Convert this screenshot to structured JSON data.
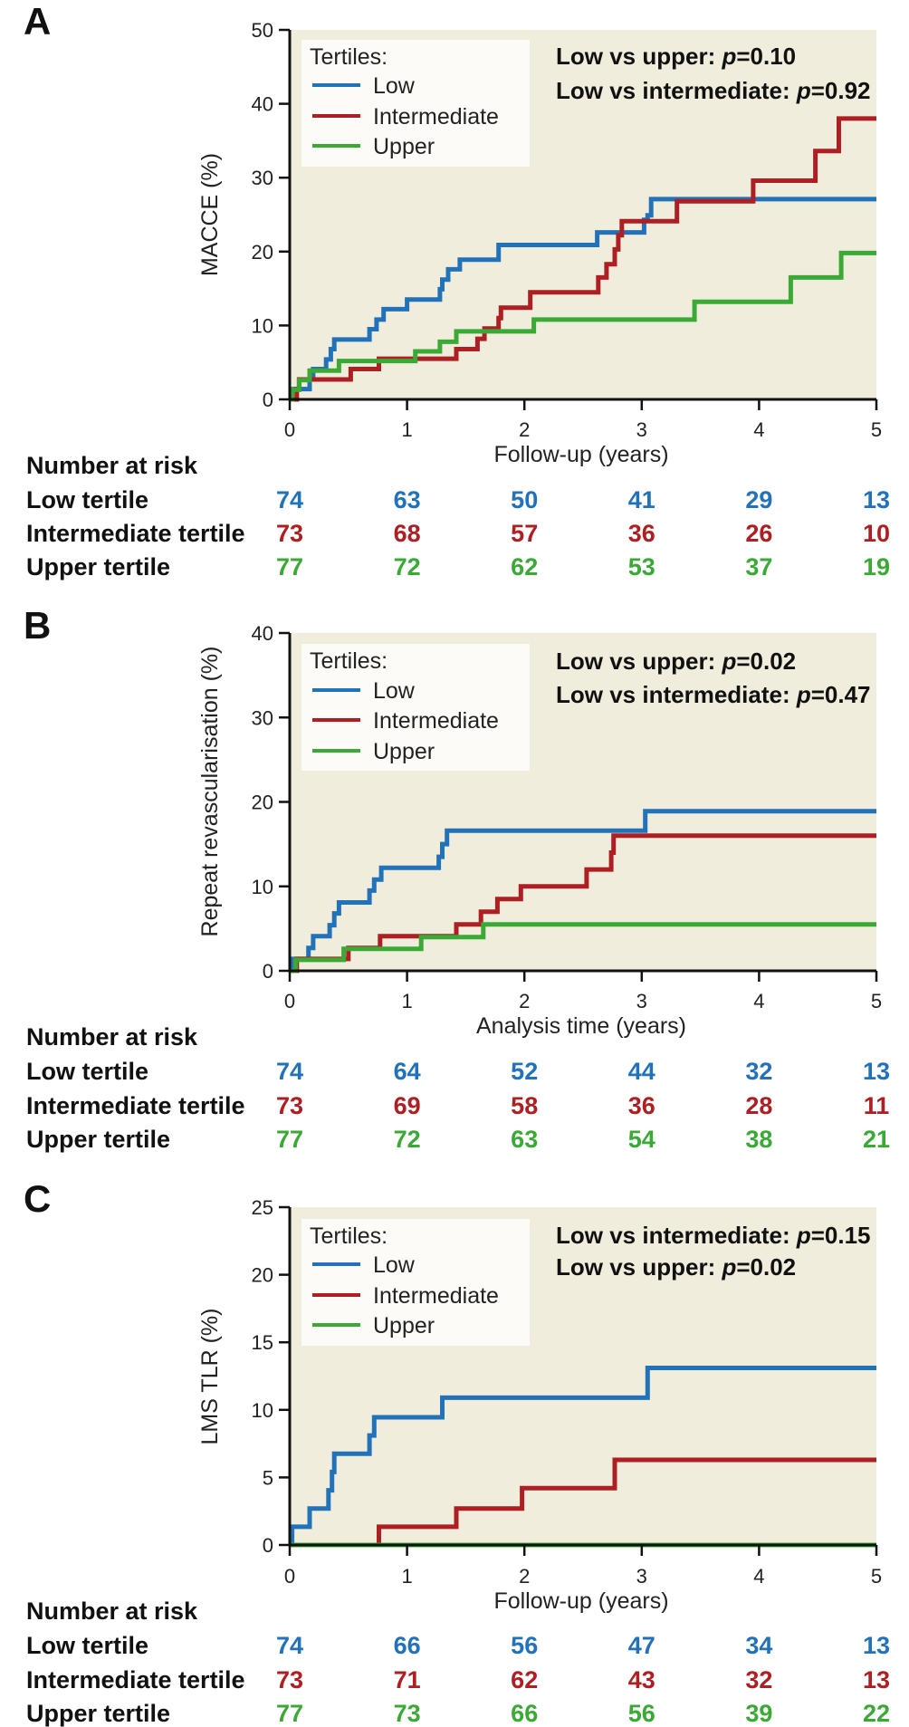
{
  "colors": {
    "low": "#2272b9",
    "intermediate": "#ad1f23",
    "upper": "#3aa935",
    "plot_background": "#f1eddc",
    "legend_background": "#fcfbf7"
  },
  "chart_data": [
    {
      "type": "line",
      "subtype": "kaplan-meier-step",
      "panel_label": "A",
      "title": "",
      "ylabel": "MACCE (%)",
      "xlabel": "Follow-up (years)",
      "xlim": [
        0,
        5
      ],
      "ylim": [
        0,
        50
      ],
      "x_ticks": [
        "0",
        "1",
        "2",
        "3",
        "4",
        "5"
      ],
      "y_ticks": [
        "0",
        "10",
        "20",
        "30",
        "40",
        "50"
      ],
      "x_tick_values": [
        0,
        1,
        2,
        3,
        4,
        5
      ],
      "y_tick_values": [
        0,
        10,
        20,
        30,
        40,
        50
      ],
      "grid": false,
      "legend": {
        "title": "Tertiles:",
        "placement": "top-left",
        "entries": [
          {
            "label": "Low",
            "key": "low"
          },
          {
            "label": "Intermediate",
            "key": "intermediate"
          },
          {
            "label": "Upper",
            "key": "upper"
          }
        ]
      },
      "annotations": [
        {
          "prefix": "Low vs upper: ",
          "p_symbol": "p",
          "suffix": "=0.10"
        },
        {
          "prefix": "Low vs intermediate: ",
          "p_symbol": "p",
          "suffix": "=0.92"
        }
      ],
      "series": [
        {
          "name": "Low",
          "key": "low",
          "points": [
            [
              0,
              0
            ],
            [
              0.02,
              1.4
            ],
            [
              0.17,
              2.7
            ],
            [
              0.2,
              4.1
            ],
            [
              0.31,
              5.4
            ],
            [
              0.35,
              6.8
            ],
            [
              0.38,
              8.1
            ],
            [
              0.68,
              9.5
            ],
            [
              0.74,
              10.8
            ],
            [
              0.8,
              12.2
            ],
            [
              1.0,
              13.5
            ],
            [
              1.28,
              14.9
            ],
            [
              1.3,
              16.2
            ],
            [
              1.35,
              17.6
            ],
            [
              1.45,
              18.9
            ],
            [
              1.78,
              20.9
            ],
            [
              2.62,
              22.6
            ],
            [
              3.02,
              24.3
            ],
            [
              3.05,
              24.9
            ],
            [
              3.08,
              27.1
            ],
            [
              5,
              27.1
            ]
          ]
        },
        {
          "name": "Intermediate",
          "key": "intermediate",
          "points": [
            [
              0,
              0
            ],
            [
              0.06,
              1.4
            ],
            [
              0.08,
              2.7
            ],
            [
              0.52,
              4.1
            ],
            [
              0.76,
              5.5
            ],
            [
              1.42,
              6.8
            ],
            [
              1.6,
              8.2
            ],
            [
              1.66,
              9.6
            ],
            [
              1.78,
              11.0
            ],
            [
              1.8,
              12.4
            ],
            [
              2.05,
              14.5
            ],
            [
              2.63,
              16.5
            ],
            [
              2.7,
              18.3
            ],
            [
              2.77,
              20.3
            ],
            [
              2.8,
              22.2
            ],
            [
              2.83,
              24.1
            ],
            [
              3.3,
              26.8
            ],
            [
              3.95,
              29.6
            ],
            [
              4.48,
              33.6
            ],
            [
              4.68,
              38.0
            ],
            [
              5,
              38.0
            ]
          ]
        },
        {
          "name": "Upper",
          "key": "upper",
          "points": [
            [
              0,
              0
            ],
            [
              0.02,
              1.3
            ],
            [
              0.08,
              2.6
            ],
            [
              0.17,
              3.9
            ],
            [
              0.42,
              5.2
            ],
            [
              1.07,
              6.5
            ],
            [
              1.28,
              7.8
            ],
            [
              1.42,
              9.2
            ],
            [
              2.08,
              10.8
            ],
            [
              3.45,
              13.2
            ],
            [
              4.27,
              16.5
            ],
            [
              4.7,
              19.8
            ],
            [
              5,
              19.8
            ]
          ]
        }
      ],
      "number_at_risk": {
        "header": "Number at risk",
        "times": [
          0,
          1,
          2,
          3,
          4,
          5
        ],
        "rows": [
          {
            "label": "Low tertile",
            "key": "low",
            "values": [
              "74",
              "63",
              "50",
              "41",
              "29",
              "13"
            ]
          },
          {
            "label": "Intermediate tertile",
            "key": "intermediate",
            "values": [
              "73",
              "68",
              "57",
              "36",
              "26",
              "10"
            ]
          },
          {
            "label": "Upper tertile",
            "key": "upper",
            "values": [
              "77",
              "72",
              "62",
              "53",
              "37",
              "19"
            ]
          }
        ]
      }
    },
    {
      "type": "line",
      "subtype": "kaplan-meier-step",
      "panel_label": "B",
      "title": "",
      "ylabel": "Repeat revascularisation (%)",
      "xlabel": "Analysis time (years)",
      "xlim": [
        0,
        5
      ],
      "ylim": [
        0,
        40
      ],
      "x_ticks": [
        "0",
        "1",
        "2",
        "3",
        "4",
        "5"
      ],
      "y_ticks": [
        "0",
        "10",
        "20",
        "30",
        "40"
      ],
      "x_tick_values": [
        0,
        1,
        2,
        3,
        4,
        5
      ],
      "y_tick_values": [
        0,
        10,
        20,
        30,
        40
      ],
      "grid": false,
      "legend": {
        "title": "Tertiles:",
        "placement": "top-left",
        "entries": [
          {
            "label": "Low",
            "key": "low"
          },
          {
            "label": "Intermediate",
            "key": "intermediate"
          },
          {
            "label": "Upper",
            "key": "upper"
          }
        ]
      },
      "annotations": [
        {
          "prefix": "Low vs upper: ",
          "p_symbol": "p",
          "suffix": "=0.02"
        },
        {
          "prefix": "Low vs intermediate: ",
          "p_symbol": "p",
          "suffix": "=0.47"
        }
      ],
      "series": [
        {
          "name": "Low",
          "key": "low",
          "points": [
            [
              0,
              0
            ],
            [
              0.02,
              1.4
            ],
            [
              0.16,
              2.7
            ],
            [
              0.2,
              4.1
            ],
            [
              0.34,
              5.4
            ],
            [
              0.38,
              6.8
            ],
            [
              0.42,
              8.1
            ],
            [
              0.68,
              9.5
            ],
            [
              0.72,
              10.8
            ],
            [
              0.78,
              12.2
            ],
            [
              1.27,
              13.5
            ],
            [
              1.3,
              15.0
            ],
            [
              1.34,
              16.6
            ],
            [
              3.03,
              18.9
            ],
            [
              5,
              18.9
            ]
          ]
        },
        {
          "name": "Intermediate",
          "key": "intermediate",
          "points": [
            [
              0,
              0
            ],
            [
              0.06,
              1.4
            ],
            [
              0.5,
              2.7
            ],
            [
              0.77,
              4.1
            ],
            [
              1.42,
              5.5
            ],
            [
              1.63,
              7.0
            ],
            [
              1.77,
              8.5
            ],
            [
              1.97,
              10.0
            ],
            [
              2.53,
              12.0
            ],
            [
              2.74,
              14.0
            ],
            [
              2.76,
              16.0
            ],
            [
              5,
              16.0
            ]
          ]
        },
        {
          "name": "Upper",
          "key": "upper",
          "points": [
            [
              0,
              0
            ],
            [
              0.05,
              1.3
            ],
            [
              0.46,
              2.6
            ],
            [
              1.12,
              4.0
            ],
            [
              1.65,
              5.5
            ],
            [
              5,
              5.5
            ]
          ]
        }
      ],
      "number_at_risk": {
        "header": "Number at risk",
        "times": [
          0,
          1,
          2,
          3,
          4,
          5
        ],
        "rows": [
          {
            "label": "Low tertile",
            "key": "low",
            "values": [
              "74",
              "64",
              "52",
              "44",
              "32",
              "13"
            ]
          },
          {
            "label": "Intermediate tertile",
            "key": "intermediate",
            "values": [
              "73",
              "69",
              "58",
              "36",
              "28",
              "11"
            ]
          },
          {
            "label": "Upper tertile",
            "key": "upper",
            "values": [
              "77",
              "72",
              "63",
              "54",
              "38",
              "21"
            ]
          }
        ]
      }
    },
    {
      "type": "line",
      "subtype": "kaplan-meier-step",
      "panel_label": "C",
      "title": "",
      "ylabel": "LMS TLR (%)",
      "xlabel": "Follow-up (years)",
      "xlim": [
        0,
        5
      ],
      "ylim": [
        0,
        25
      ],
      "x_ticks": [
        "0",
        "1",
        "2",
        "3",
        "4",
        "5"
      ],
      "y_ticks": [
        "0",
        "5",
        "10",
        "15",
        "20",
        "25"
      ],
      "x_tick_values": [
        0,
        1,
        2,
        3,
        4,
        5
      ],
      "y_tick_values": [
        0,
        5,
        10,
        15,
        20,
        25
      ],
      "grid": false,
      "legend": {
        "title": "Tertiles:",
        "placement": "top-left",
        "entries": [
          {
            "label": "Low",
            "key": "low"
          },
          {
            "label": "Intermediate",
            "key": "intermediate"
          },
          {
            "label": "Upper",
            "key": "upper"
          }
        ]
      },
      "annotations": [
        {
          "prefix": "Low vs intermediate: ",
          "p_symbol": "p",
          "suffix": "=0.15"
        },
        {
          "prefix": "Low vs upper: ",
          "p_symbol": "p",
          "suffix": "=0.02"
        }
      ],
      "series": [
        {
          "name": "Low",
          "key": "low",
          "points": [
            [
              0,
              0
            ],
            [
              0.02,
              1.35
            ],
            [
              0.17,
              2.7
            ],
            [
              0.33,
              4.05
            ],
            [
              0.36,
              5.4
            ],
            [
              0.38,
              6.75
            ],
            [
              0.68,
              8.1
            ],
            [
              0.72,
              9.45
            ],
            [
              1.3,
              10.9
            ],
            [
              3.05,
              13.1
            ],
            [
              5,
              13.1
            ]
          ]
        },
        {
          "name": "Intermediate",
          "key": "intermediate",
          "points": [
            [
              0,
              0
            ],
            [
              0.76,
              0
            ],
            [
              0.76,
              1.35
            ],
            [
              1.42,
              2.7
            ],
            [
              1.98,
              4.2
            ],
            [
              2.77,
              6.3
            ],
            [
              5,
              6.3
            ]
          ]
        },
        {
          "name": "Upper",
          "key": "upper",
          "points": [
            [
              0,
              0
            ],
            [
              5,
              0
            ]
          ]
        }
      ],
      "number_at_risk": {
        "header": "Number at risk",
        "times": [
          0,
          1,
          2,
          3,
          4,
          5
        ],
        "rows": [
          {
            "label": "Low tertile",
            "key": "low",
            "values": [
              "74",
              "66",
              "56",
              "47",
              "34",
              "13"
            ]
          },
          {
            "label": "Intermediate tertile",
            "key": "intermediate",
            "values": [
              "73",
              "71",
              "62",
              "43",
              "32",
              "13"
            ]
          },
          {
            "label": "Upper tertile",
            "key": "upper",
            "values": [
              "77",
              "73",
              "66",
              "56",
              "39",
              "22"
            ]
          }
        ]
      }
    }
  ]
}
